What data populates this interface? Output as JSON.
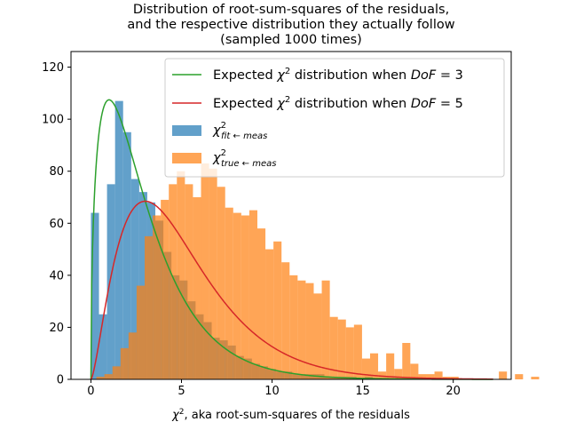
{
  "chart_data": {
    "type": "histogram",
    "title_lines": [
      "Distribution of root-sum-squares of the residuals,",
      "and the respective distribution they actually follow",
      "(sampled 1000 times)"
    ],
    "xlabel": {
      "symbol": "χ",
      "sup": "2",
      "rest": ", aka root-sum-squares of the residuals"
    },
    "ylabel": "",
    "xlim": [
      -1.1,
      23.2
    ],
    "ylim": [
      0,
      126
    ],
    "xticks": [
      0,
      5,
      10,
      15,
      20
    ],
    "yticks": [
      0,
      20,
      40,
      60,
      80,
      100,
      120
    ],
    "grid": false,
    "legend_position": "top-right",
    "bin_width": 0.4444,
    "series": [
      {
        "name": "χ²fit←meas",
        "legend": {
          "symbol": "χ",
          "sup": "2",
          "sub": "fit ← meas"
        },
        "kind": "histogram",
        "color": "#1f77b4",
        "alpha": 0.7,
        "bins_start": 0.0,
        "bin_width": 0.4444,
        "counts": [
          64,
          25,
          75,
          107,
          95,
          77,
          72,
          68,
          61,
          49,
          40,
          38,
          30,
          25,
          22,
          16,
          15,
          13,
          9,
          8,
          6,
          5,
          4,
          3,
          3,
          2,
          2,
          2,
          2,
          1,
          1,
          1,
          1,
          0,
          1,
          0,
          0,
          0,
          0,
          0,
          0,
          0,
          0,
          0,
          0,
          0,
          0,
          0
        ]
      },
      {
        "name": "χ²true←meas",
        "legend": {
          "symbol": "χ",
          "sup": "2",
          "sub": "true ← meas"
        },
        "kind": "histogram",
        "color": "#ff7f0e",
        "alpha": 0.7,
        "bins_start": 0.3,
        "bin_width": 0.4444,
        "counts": [
          1,
          2,
          5,
          12,
          18,
          36,
          55,
          63,
          69,
          75,
          80,
          75,
          70,
          83,
          81,
          74,
          66,
          64,
          63,
          65,
          58,
          50,
          53,
          45,
          40,
          38,
          37,
          33,
          38,
          24,
          23,
          20,
          21,
          8,
          10,
          3,
          10,
          4,
          14,
          6,
          2,
          2,
          3,
          1,
          1,
          0,
          0,
          0,
          0,
          0,
          3,
          0,
          2,
          0,
          1,
          0,
          0
        ]
      },
      {
        "name": "Expected χ2 distribution when DoF = 3",
        "legend": {
          "pre": "Expected ",
          "symbol": "χ",
          "sup": "2",
          "mid": " distribution when ",
          "var": "DoF",
          "eq": " = 3"
        },
        "kind": "line",
        "color": "#2ca02c",
        "dof": 3,
        "scale": 444,
        "x_range": [
          0,
          22.2
        ]
      },
      {
        "name": "Expected χ2 distribution when DoF = 5",
        "legend": {
          "pre": "Expected ",
          "symbol": "χ",
          "sup": "2",
          "mid": " distribution when ",
          "var": "DoF",
          "eq": " = 5"
        },
        "kind": "line",
        "color": "#d62728",
        "dof": 5,
        "scale": 444,
        "x_range": [
          0,
          22.2
        ]
      }
    ]
  }
}
